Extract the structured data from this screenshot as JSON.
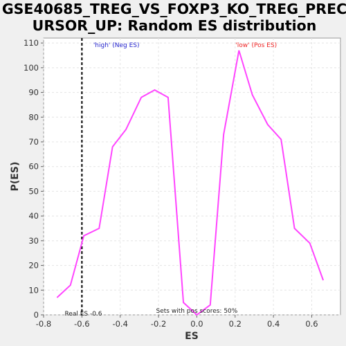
{
  "chart_data": {
    "type": "line",
    "title_lines": [
      "GSE40685_TREG_VS_FOXP3_KO_TREG_PREC",
      "URSOR_UP: Random ES distribution"
    ],
    "xlabel": "ES",
    "ylabel": "P(ES)",
    "xlim": [
      -0.8,
      0.75
    ],
    "ylim": [
      0,
      112
    ],
    "xticks": [
      -0.8,
      -0.6,
      -0.4,
      -0.2,
      0.0,
      0.2,
      0.4,
      0.6
    ],
    "xtick_labels": [
      "-0.8",
      "-0.6",
      "-0.4",
      "-0.2",
      "0.0",
      "0.2",
      "0.4",
      "0.6"
    ],
    "yticks": [
      0,
      10,
      20,
      30,
      40,
      50,
      60,
      70,
      80,
      90,
      100,
      110
    ],
    "grid": true,
    "series": [
      {
        "color": "#ff44ff",
        "x": [
          -0.73,
          -0.66,
          -0.59,
          -0.51,
          -0.44,
          -0.37,
          -0.29,
          -0.22,
          -0.15,
          -0.07,
          0.0,
          0.07,
          0.14,
          0.22,
          0.29,
          0.37,
          0.44,
          0.51,
          0.59,
          0.66
        ],
        "y": [
          7,
          12,
          32,
          35,
          68,
          75,
          88,
          91,
          88,
          5,
          0,
          4,
          73,
          107,
          89,
          77,
          71,
          35,
          29,
          14
        ]
      }
    ],
    "real_es": -0.6,
    "real_es_label": "Real ES -0.6",
    "annotations": {
      "neg_label": "'high' (Neg ES)",
      "neg_color": "#2222cc",
      "pos_label": "'low' (Pos ES)",
      "pos_color": "#ee2222",
      "sets_label": "Sets with pos scores: 50%"
    }
  }
}
